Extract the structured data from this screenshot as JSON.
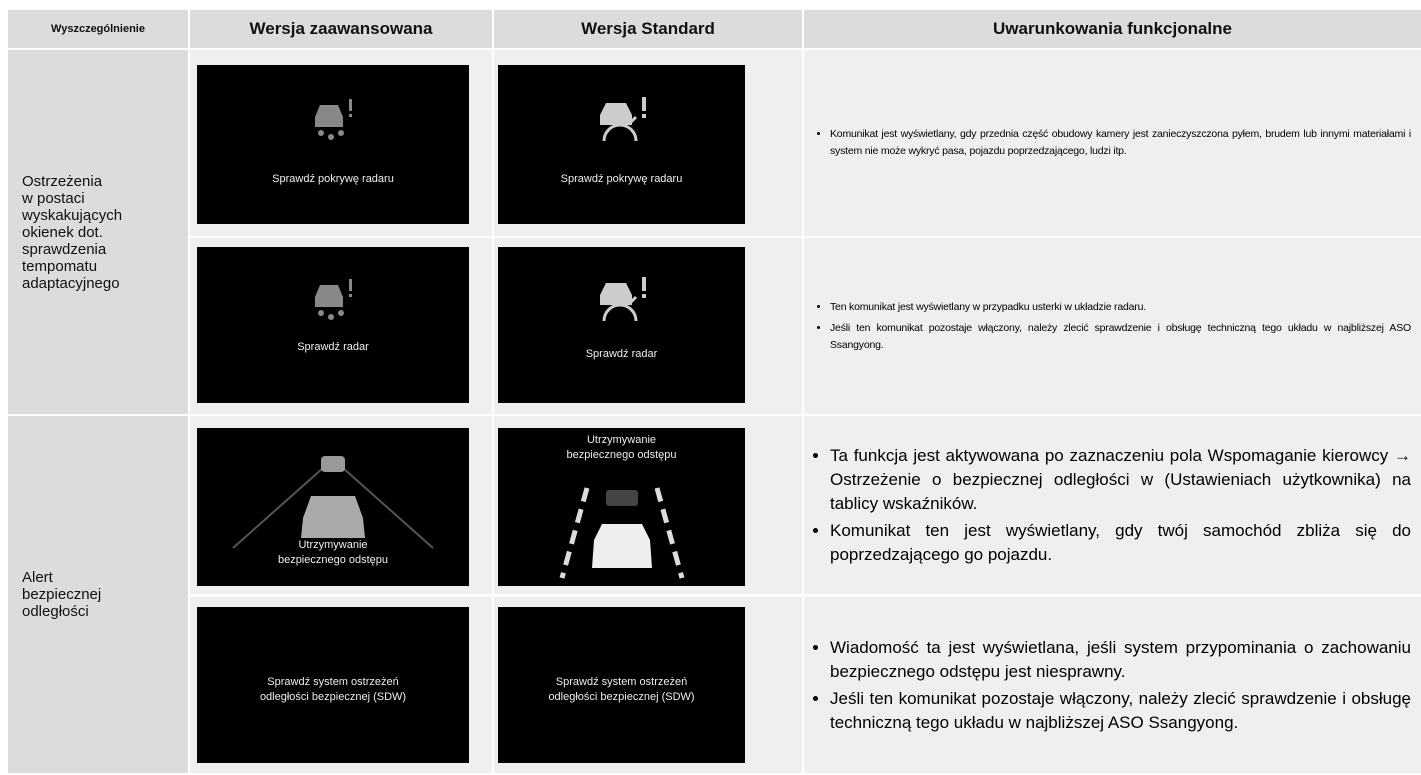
{
  "header": [
    "Wyszczególnienie",
    "Wersja zaawansowana",
    "Wersja Standard",
    "Uwarunkowania funkcjonalne"
  ],
  "sections": [
    {
      "label": [
        "Ostrzeżenia",
        "w postaci",
        "wyskakujących",
        "okienek dot.",
        "sprawdzenia",
        "tempomatu",
        "adaptacyjnego"
      ],
      "rows": [
        {
          "advanced": [
            "Sprawdź pokrywę radaru"
          ],
          "standard": [
            "Sprawdź pokrywę radaru"
          ],
          "notes": [
            "Komunikat jest wyświetlany, gdy przednia część obudowy kamery jest zanieczyszczona pyłem, brudem lub innymi materiałami i system nie może wykryć pasa, pojazdu poprzedzającego, ludzi itp."
          ]
        },
        {
          "advanced": [
            "Sprawdź radar"
          ],
          "standard": [
            "Sprawdź radar"
          ],
          "notes": [
            "Ten komunikat jest wyświetlany w przypadku usterki w układzie radaru.",
            "Jeśli ten komunikat pozostaje włączony, należy zlecić sprawdzenie i obsługę techniczną tego układu w najbliższej ASO Ssangyong."
          ]
        }
      ]
    },
    {
      "label": [
        "Alert",
        "bezpiecznej",
        "odległości"
      ],
      "rows": [
        {
          "advanced": [
            "Utrzymywanie",
            "bezpiecznego odstępu"
          ],
          "standard": [
            "Utrzymywanie",
            "bezpiecznego odstępu"
          ],
          "notes": [
            "Ta funkcja jest aktywowana po zaznaczeniu pola Wspomaganie kierowcy → Ostrzeżenie o bezpiecznej odległości w  (Ustawieniach użytkownika) na tablicy wskaźników.",
            "Komunikat ten jest wyświetlany, gdy twój samochód zbliża się do poprzedzającego go pojazdu."
          ]
        },
        {
          "advanced": [
            "Sprawdź system ostrzeżeń",
            "odległości bezpiecznej (SDW)"
          ],
          "standard": [
            "Sprawdź system ostrzeżeń",
            "odległości bezpiecznej (SDW)"
          ],
          "notes": [
            "Wiadomość ta jest wyświetlana, jeśli system przypominania o zachowaniu bezpiecznego odstępu jest niesprawny.",
            "Jeśli ten komunikat pozostaje włączony, należy zlecić sprawdzenie i obsługę techniczną tego układu w najbliższej ASO Ssangyong."
          ]
        }
      ]
    }
  ]
}
